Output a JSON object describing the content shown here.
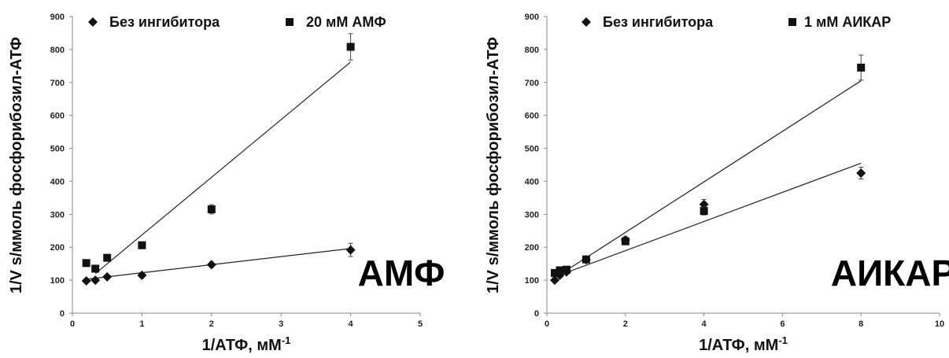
{
  "chart_data": [
    {
      "type": "scatter",
      "overlay_label": "АМФ",
      "ylabel": "1/V s/ммоль фосфорибозил-АТФ",
      "xlabel": "1/АТФ, мМ",
      "xlabel_sup": "-1",
      "xlim": [
        0,
        5
      ],
      "ylim": [
        0,
        900
      ],
      "xticks": [
        "0",
        "1",
        "2",
        "3",
        "4",
        "5"
      ],
      "yticks": [
        "0",
        "100",
        "200",
        "300",
        "400",
        "500",
        "600",
        "700",
        "800",
        "900"
      ],
      "legend_position": "top",
      "series": [
        {
          "name": "Без ингибитора",
          "marker": "diamond",
          "x": [
            0.2,
            0.33,
            0.5,
            1,
            2,
            4
          ],
          "y": [
            98,
            100,
            110,
            115,
            147,
            192
          ],
          "err": [
            4,
            4,
            5,
            8,
            8,
            20
          ],
          "fit": [
            [
              0.2,
              103
            ],
            [
              4,
              196
            ]
          ]
        },
        {
          "name": "20 мМ АМФ",
          "marker": "square",
          "x": [
            0.2,
            0.33,
            0.5,
            1,
            2,
            4
          ],
          "y": [
            152,
            135,
            168,
            206,
            315,
            808
          ],
          "err": [
            4,
            4,
            5,
            6,
            14,
            40
          ],
          "fit": [
            [
              0.33,
              120
            ],
            [
              4,
              762
            ]
          ]
        }
      ]
    },
    {
      "type": "scatter",
      "overlay_label": "АИКАР",
      "ylabel": "1/V s/ммоль фосфорибозил-АТФ",
      "xlabel": "1/АТФ,  мМ",
      "xlabel_sup": "-1",
      "xlim": [
        0,
        10
      ],
      "ylim": [
        0,
        900
      ],
      "xticks": [
        "0",
        "2",
        "4",
        "6",
        "8",
        "10"
      ],
      "yticks": [
        "0",
        "100",
        "200",
        "300",
        "400",
        "500",
        "600",
        "700",
        "800",
        "900"
      ],
      "legend_position": "top",
      "series": [
        {
          "name": "Без ингибитора",
          "marker": "diamond",
          "x": [
            0.2,
            0.33,
            0.5,
            1,
            2,
            4,
            8
          ],
          "y": [
            100,
            115,
            125,
            162,
            222,
            330,
            425
          ],
          "err": [
            4,
            4,
            5,
            8,
            10,
            15,
            18
          ],
          "fit": [
            [
              0.2,
              110
            ],
            [
              8,
              455
            ]
          ]
        },
        {
          "name": "1 мМ АИКАР",
          "marker": "square",
          "x": [
            0.2,
            0.33,
            0.5,
            1,
            2,
            4,
            8
          ],
          "y": [
            122,
            130,
            132,
            163,
            218,
            310,
            745
          ],
          "err": [
            4,
            4,
            5,
            8,
            8,
            12,
            38
          ],
          "fit": [
            [
              0.2,
              107
            ],
            [
              8,
              705
            ]
          ]
        }
      ]
    }
  ]
}
